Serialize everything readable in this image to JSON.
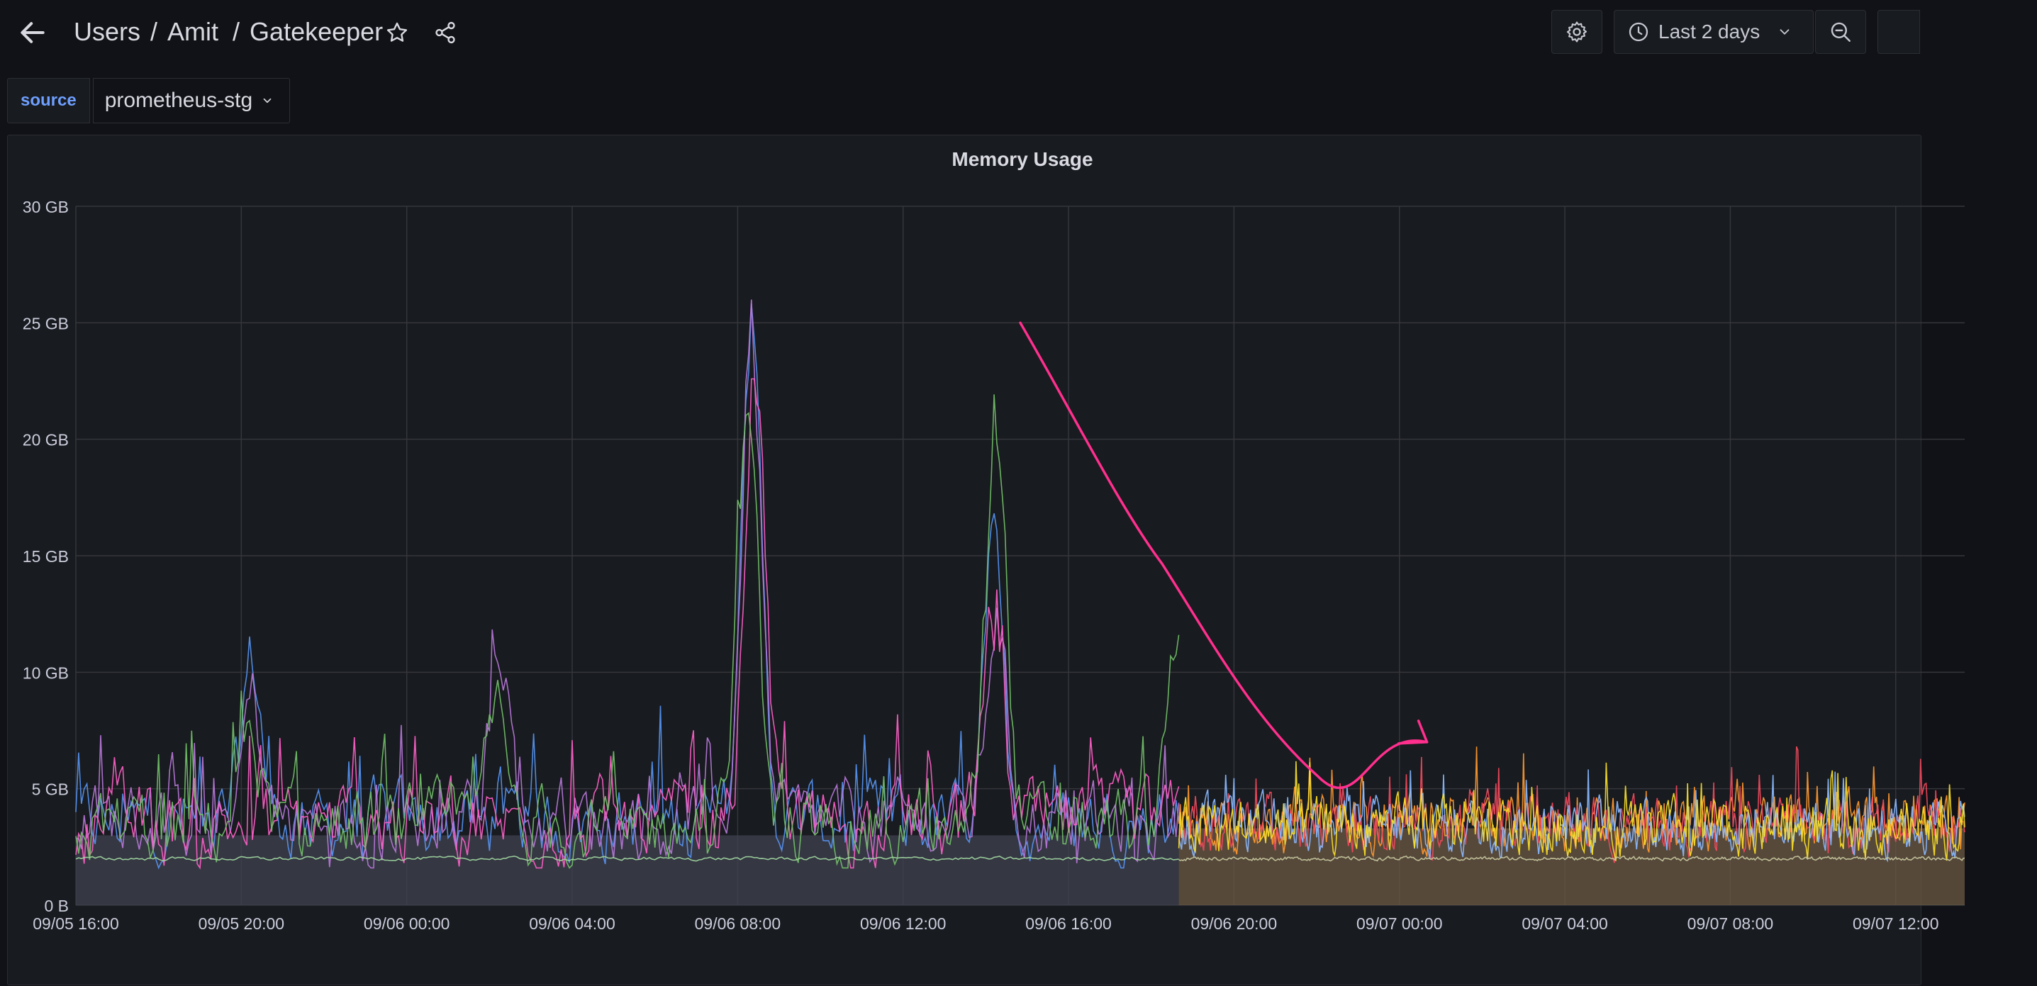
{
  "header": {
    "breadcrumb": [
      "Users",
      "Amit",
      "Gatekeeper"
    ],
    "time_range": "Last 2 days"
  },
  "icons": {
    "back": "arrow-left-icon",
    "star": "star-icon",
    "share": "share-icon",
    "settings": "gear-icon",
    "time": "clock-icon",
    "time_dropdown": "chevron-down-icon",
    "zoom_out": "zoom-out-icon"
  },
  "variables": [
    {
      "label": "source",
      "value": "prometheus-stg"
    }
  ],
  "colors": {
    "background": "#111217",
    "panel": "#181b1f",
    "variable_label": "#6e9fff",
    "annotation": "#ff2f8e"
  },
  "chart_data": {
    "type": "line",
    "title": "Memory Usage",
    "y_unit": "GB",
    "ylim": [
      0,
      30
    ],
    "y_ticks": [
      "0 B",
      "5 GB",
      "10 GB",
      "15 GB",
      "20 GB",
      "25 GB",
      "30 GB"
    ],
    "x_ticks": [
      "09/05 16:00",
      "09/05 20:00",
      "09/06 00:00",
      "09/06 04:00",
      "09/06 08:00",
      "09/06 12:00",
      "09/06 16:00",
      "09/06 20:00",
      "09/07 00:00",
      "09/07 04:00",
      "09/07 08:00",
      "09/07 12:00"
    ],
    "x_range": [
      "09/05 16:00",
      "09/07 13:40"
    ],
    "grid": true,
    "legend": "none",
    "change_at": "09/06 18:40",
    "series_before": [
      {
        "color": "#5794f2",
        "baseline": 3.6,
        "noise": 1.6,
        "peaks": [
          [
            "09/05 20:15",
            10.5
          ],
          [
            "09/06 08:20",
            24.8
          ],
          [
            "09/06 14:10",
            15.2
          ]
        ]
      },
      {
        "color": "#b877d9",
        "baseline": 3.6,
        "noise": 1.6,
        "peaks": [
          [
            "09/05 20:15",
            8.8
          ],
          [
            "09/06 02:15",
            11.6
          ],
          [
            "09/06 08:20",
            25.1
          ],
          [
            "09/06 14:15",
            12.5
          ]
        ]
      },
      {
        "color": "#ff5fc8",
        "baseline": 3.5,
        "noise": 1.7,
        "peaks": [
          [
            "09/06 08:25",
            23.5
          ],
          [
            "09/06 14:10",
            11.8
          ]
        ]
      },
      {
        "color": "#73bf69",
        "baseline": 3.4,
        "noise": 1.6,
        "peaks": [
          [
            "09/05 20:10",
            8.6
          ],
          [
            "09/06 02:10",
            8.4
          ],
          [
            "09/06 08:15",
            22.6
          ],
          [
            "09/06 14:15",
            22.3
          ],
          [
            "09/06 18:35",
            11.9
          ]
        ]
      },
      {
        "color": "#9fd6a0",
        "baseline": 2.0,
        "noise": 0.08,
        "peaks": []
      }
    ],
    "series_after": [
      {
        "color": "#ff9830",
        "baseline": 3.6,
        "noise": 1.1
      },
      {
        "color": "#f2495c",
        "baseline": 3.5,
        "noise": 1.1
      },
      {
        "color": "#8ab8ff",
        "baseline": 3.4,
        "noise": 1.1
      },
      {
        "color": "#fade2a",
        "baseline": 3.3,
        "noise": 1.1
      },
      {
        "color": "#c8c8a0",
        "baseline": 2.0,
        "noise": 0.08
      }
    ],
    "fill_before": {
      "color": "#3f4250",
      "level": 3.0
    },
    "fill_after": {
      "color": "#6b5a44",
      "level": 3.3
    },
    "annotation_arrow": {
      "color": "#ff2f8e",
      "from": [
        "09/06 14:50",
        25.0
      ],
      "to": [
        "09/07 00:40",
        7.0
      ]
    }
  }
}
